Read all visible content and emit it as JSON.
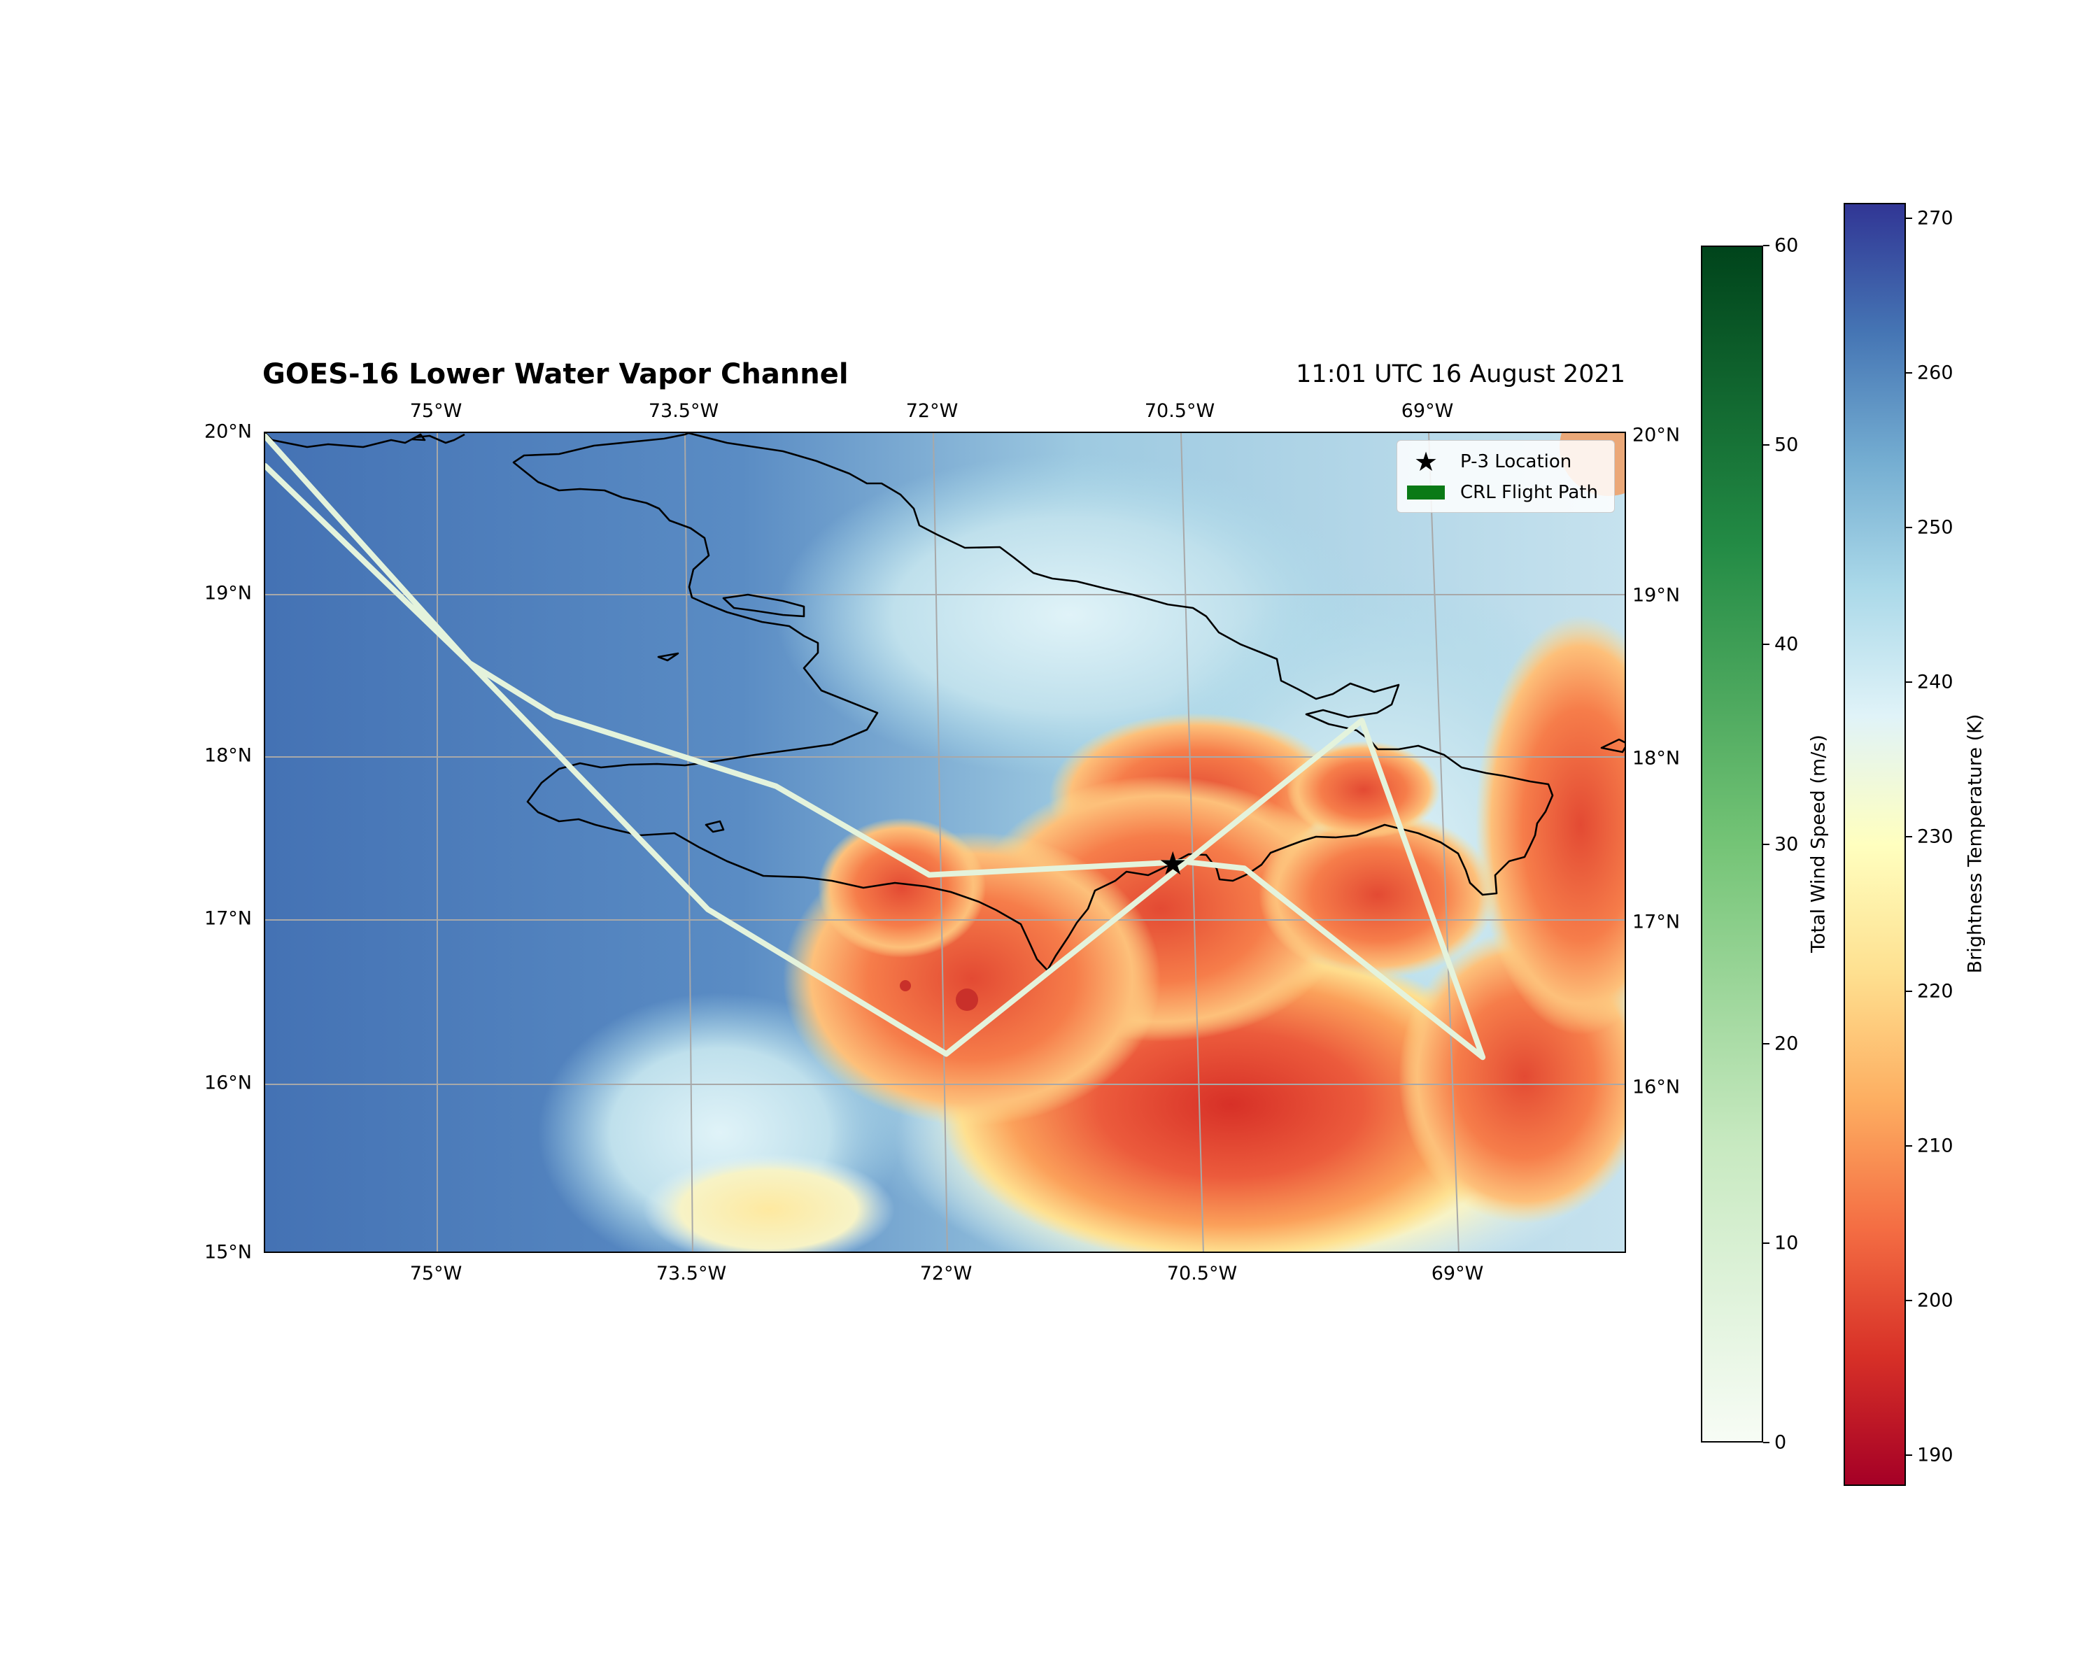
{
  "header": {
    "title": "GOES-16 Lower Water Vapor Channel",
    "timestamp": "11:01 UTC 16 August 2021"
  },
  "axes": {
    "lon_labels": [
      "75°W",
      "73.5°W",
      "72°W",
      "70.5°W",
      "69°W"
    ],
    "lat_labels": [
      "20°N",
      "19°N",
      "18°N",
      "17°N",
      "16°N",
      "15°N"
    ],
    "lon_range": [
      -76.0,
      -68.0
    ],
    "lat_range": [
      15.0,
      20.0
    ],
    "grid": true
  },
  "legend": {
    "items": [
      {
        "label": "P-3 Location",
        "symbol": "star-icon",
        "color": "#000000"
      },
      {
        "label": "CRL Flight Path",
        "symbol": "swatch",
        "color": "#0a7a16"
      }
    ]
  },
  "map": {
    "p3_location": {
      "lon": -70.67,
      "lat": 17.38
    },
    "flight_path": [
      {
        "lon": -76.0,
        "lat": 19.98
      },
      {
        "lon": -74.8,
        "lat": 18.6
      },
      {
        "lon": -74.3,
        "lat": 18.28
      },
      {
        "lon": -73.0,
        "lat": 17.85
      },
      {
        "lon": -72.1,
        "lat": 17.31
      },
      {
        "lon": -70.6,
        "lat": 17.39
      },
      {
        "lon": -70.25,
        "lat": 17.35
      },
      {
        "lon": -68.85,
        "lat": 16.2
      },
      {
        "lon": -69.56,
        "lat": 18.25
      },
      {
        "lon": -70.6,
        "lat": 17.38
      },
      {
        "lon": -72.0,
        "lat": 16.22
      },
      {
        "lon": -73.4,
        "lat": 17.1
      },
      {
        "lon": -74.8,
        "lat": 18.6
      },
      {
        "lon": -76.0,
        "lat": 19.8
      }
    ],
    "colors": {
      "ocean_clear": "#4a7ab8",
      "cold_cloud": "#e8503a",
      "path_color": "#e4f3dc"
    }
  },
  "colorbars": {
    "wind": {
      "label": "Total Wind Speed (m/s)",
      "ticks": [
        "0",
        "10",
        "20",
        "30",
        "40",
        "50",
        "60"
      ],
      "range": [
        0,
        60
      ],
      "colors": [
        "#f7fcf5",
        "#c7e9c0",
        "#74c476",
        "#238b45",
        "#00441b"
      ]
    },
    "brightness": {
      "label": "Brightness Temperature (K)",
      "ticks": [
        "190",
        "200",
        "210",
        "220",
        "230",
        "240",
        "250",
        "260",
        "270"
      ],
      "range": [
        188,
        271
      ],
      "colors": [
        "#a50026",
        "#d73027",
        "#f46d43",
        "#fdae61",
        "#fee090",
        "#ffffbf",
        "#e0f3f8",
        "#abd9e9",
        "#74add1",
        "#4575b4",
        "#313695"
      ]
    }
  }
}
